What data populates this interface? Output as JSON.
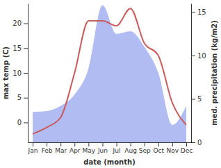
{
  "chart_data": {
    "type": "line",
    "categories": [
      "Jan",
      "Feb",
      "Mar",
      "Apr",
      "May",
      "Jun",
      "Jul",
      "Aug",
      "Sep",
      "Oct",
      "Nov",
      "Dec"
    ],
    "x_label": "date (month)",
    "y_label": "max temp (C)",
    "y2_label": "med. precipitation (kg/m2)",
    "ylim": [
      -4,
      24
    ],
    "yticks": [
      0,
      5,
      10,
      15,
      20
    ],
    "y2lim": [
      0,
      16
    ],
    "y2ticks": [
      0,
      5,
      10,
      15
    ],
    "series": [
      {
        "name": "max temp",
        "type": "line",
        "color": "#c95b5b",
        "values": [
          -2.3,
          -1,
          1,
          10,
          20.5,
          20.5,
          19.5,
          23,
          16,
          13.5,
          4,
          -0.5
        ]
      },
      {
        "name": "med. precipitation",
        "type": "area",
        "axis": "y2",
        "color": "#b1bdf2",
        "values": [
          3.5,
          3.6,
          4.2,
          5.5,
          8.5,
          15.8,
          12.5,
          12.8,
          11,
          8,
          2,
          4.2
        ]
      }
    ]
  }
}
